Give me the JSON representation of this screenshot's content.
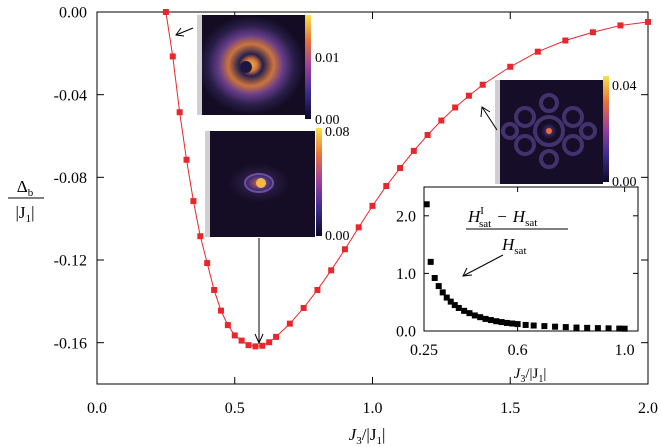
{
  "chart_data": [
    {
      "type": "line",
      "xlabel_main": "J",
      "xlabel_sub": "3",
      "xlabel_den": "/|J",
      "xlabel_den_sub": "1",
      "xlabel_tail": "|",
      "ylabel_num_main": "Δ",
      "ylabel_num_sub": "b",
      "ylabel_den_main": "|J",
      "ylabel_den_sub": "1",
      "ylabel_den_tail": "|",
      "xlim": [
        0.0,
        2.0
      ],
      "ylim": [
        -0.18,
        0.0
      ],
      "xticks": [
        "0.0",
        "0.5",
        "1.0",
        "1.5",
        "2.0"
      ],
      "yticks": [
        "0.00",
        "-0.04",
        "-0.08",
        "-0.12",
        "-0.16"
      ],
      "series": [
        {
          "color": "#e8272d",
          "marker": "square",
          "x": [
            0.25,
            0.275,
            0.3,
            0.325,
            0.35,
            0.375,
            0.4,
            0.425,
            0.45,
            0.475,
            0.5,
            0.525,
            0.55,
            0.575,
            0.6,
            0.625,
            0.65,
            0.7,
            0.75,
            0.8,
            0.85,
            0.9,
            0.95,
            1.0,
            1.05,
            1.1,
            1.15,
            1.2,
            1.25,
            1.3,
            1.35,
            1.4,
            1.5,
            1.6,
            1.7,
            1.8,
            1.9,
            2.0
          ],
          "y": [
            0.0,
            -0.0215,
            -0.0485,
            -0.0715,
            -0.0915,
            -0.1085,
            -0.1215,
            -0.1345,
            -0.1445,
            -0.1515,
            -0.1565,
            -0.159,
            -0.1612,
            -0.1618,
            -0.1615,
            -0.1598,
            -0.1572,
            -0.1508,
            -0.1432,
            -0.1345,
            -0.125,
            -0.1148,
            -0.1042,
            -0.0938,
            -0.0842,
            -0.0755,
            -0.0672,
            -0.0595,
            -0.0525,
            -0.0462,
            -0.0405,
            -0.0352,
            -0.0265,
            -0.0192,
            -0.0138,
            -0.0098,
            -0.0065,
            -0.0048
          ]
        }
      ]
    },
    {
      "type": "scatter",
      "xlabel_main": "J",
      "xlabel_sub": "3",
      "xlabel_den": "/|J",
      "xlabel_den_sub": "1",
      "xlabel_tail": "|",
      "xlim": [
        0.25,
        1.05
      ],
      "ylim": [
        0.0,
        2.5
      ],
      "xticks": [
        "0.25",
        "0.6",
        "1.0"
      ],
      "yticks": [
        "0.0",
        "1.0",
        "2.0"
      ],
      "annotation": {
        "num_a": "H",
        "num_a_sup": "I",
        "num_a_sub": "sat",
        "minus": "−",
        "num_b": "H",
        "num_b_sub": "sat",
        "den": "H",
        "den_sub": "sat"
      },
      "series": [
        {
          "color": "#000000",
          "marker": "square",
          "x": [
            0.26,
            0.275,
            0.29,
            0.305,
            0.32,
            0.335,
            0.35,
            0.365,
            0.38,
            0.4,
            0.42,
            0.44,
            0.46,
            0.48,
            0.5,
            0.52,
            0.54,
            0.56,
            0.58,
            0.6,
            0.63,
            0.66,
            0.7,
            0.74,
            0.78,
            0.82,
            0.86,
            0.9,
            0.94,
            0.98,
            1.0
          ],
          "y": [
            2.2,
            1.2,
            0.92,
            0.78,
            0.67,
            0.58,
            0.51,
            0.45,
            0.4,
            0.35,
            0.31,
            0.27,
            0.24,
            0.21,
            0.19,
            0.17,
            0.155,
            0.14,
            0.13,
            0.12,
            0.105,
            0.095,
            0.085,
            0.075,
            0.068,
            0.06,
            0.055,
            0.05,
            0.046,
            0.042,
            0.04
          ]
        }
      ]
    }
  ],
  "colorbars": [
    {
      "max_label": "0.01",
      "min_label": "0.00"
    },
    {
      "max_label": "0.08",
      "min_label": "0.00"
    },
    {
      "max_label": "0.04",
      "min_label": "0.00"
    }
  ]
}
